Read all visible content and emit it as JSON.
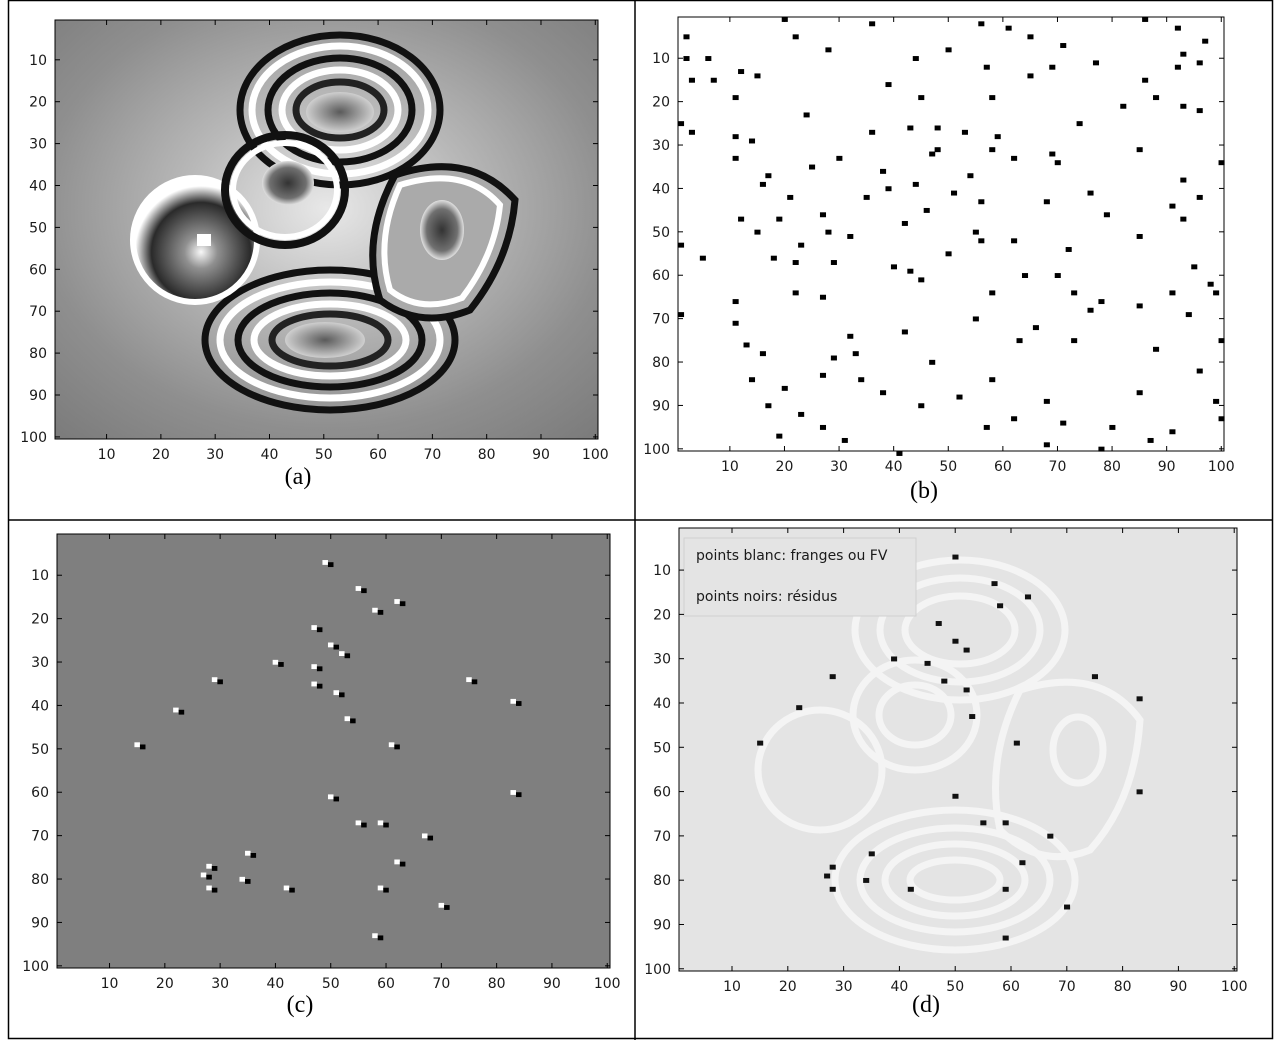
{
  "figure": {
    "panels": [
      {
        "id": "a",
        "caption": "(a)"
      },
      {
        "id": "b",
        "caption": "(b)"
      },
      {
        "id": "c",
        "caption": "(c)"
      },
      {
        "id": "d",
        "caption": "(d)"
      }
    ]
  },
  "chart_data": [
    {
      "panel": "a",
      "type": "heatmap",
      "caption": "(a)",
      "colormap": "gray",
      "content": "wrapped interferometric phase map with concentric fringes",
      "xlim": [
        1,
        100
      ],
      "ylim": [
        1,
        100
      ],
      "y_reversed": true,
      "xticks": [
        10,
        20,
        30,
        40,
        50,
        60,
        70,
        80,
        90,
        100
      ],
      "yticks": [
        10,
        20,
        30,
        40,
        50,
        60,
        70,
        80,
        90,
        100
      ]
    },
    {
      "panel": "b",
      "type": "scatter",
      "caption": "(b)",
      "marker": "black square",
      "background": "white",
      "xlim": [
        1,
        100
      ],
      "ylim": [
        1,
        100
      ],
      "y_reversed": true,
      "xticks": [
        10,
        20,
        30,
        40,
        50,
        60,
        70,
        80,
        90,
        100
      ],
      "yticks": [
        10,
        20,
        30,
        40,
        50,
        60,
        70,
        80,
        90,
        100
      ],
      "points": [
        [
          20,
          1
        ],
        [
          36,
          2
        ],
        [
          56,
          2
        ],
        [
          61,
          3
        ],
        [
          86,
          1
        ],
        [
          2,
          5
        ],
        [
          22,
          5
        ],
        [
          50,
          8
        ],
        [
          65,
          5
        ],
        [
          92,
          3
        ],
        [
          71,
          7
        ],
        [
          97,
          6
        ],
        [
          93,
          9
        ],
        [
          28,
          8
        ],
        [
          2,
          10
        ],
        [
          6,
          10
        ],
        [
          44,
          10
        ],
        [
          57,
          12
        ],
        [
          77,
          11
        ],
        [
          92,
          12
        ],
        [
          12,
          13
        ],
        [
          15,
          14
        ],
        [
          65,
          14
        ],
        [
          86,
          15
        ],
        [
          96,
          11
        ],
        [
          3,
          15
        ],
        [
          7,
          15
        ],
        [
          39,
          16
        ],
        [
          58,
          19
        ],
        [
          69,
          12
        ],
        [
          88,
          19
        ],
        [
          96,
          22
        ],
        [
          11,
          19
        ],
        [
          24,
          23
        ],
        [
          45,
          19
        ],
        [
          82,
          21
        ],
        [
          93,
          21
        ],
        [
          1,
          25
        ],
        [
          36,
          27
        ],
        [
          43,
          26
        ],
        [
          48,
          26
        ],
        [
          53,
          27
        ],
        [
          59,
          28
        ],
        [
          74,
          25
        ],
        [
          47,
          32
        ],
        [
          3,
          27
        ],
        [
          11,
          28
        ],
        [
          14,
          29
        ],
        [
          48,
          31
        ],
        [
          30,
          33
        ],
        [
          58,
          31
        ],
        [
          69,
          32
        ],
        [
          85,
          31
        ],
        [
          11,
          33
        ],
        [
          25,
          35
        ],
        [
          70,
          34
        ],
        [
          100,
          34
        ],
        [
          17,
          37
        ],
        [
          38,
          36
        ],
        [
          54,
          37
        ],
        [
          62,
          33
        ],
        [
          39,
          40
        ],
        [
          44,
          39
        ],
        [
          93,
          38
        ],
        [
          76,
          41
        ],
        [
          16,
          39
        ],
        [
          21,
          42
        ],
        [
          35,
          42
        ],
        [
          51,
          41
        ],
        [
          56,
          43
        ],
        [
          68,
          43
        ],
        [
          91,
          44
        ],
        [
          96,
          42
        ],
        [
          27,
          46
        ],
        [
          46,
          45
        ],
        [
          79,
          46
        ],
        [
          12,
          47
        ],
        [
          19,
          47
        ],
        [
          28,
          50
        ],
        [
          32,
          51
        ],
        [
          42,
          48
        ],
        [
          55,
          50
        ],
        [
          62,
          52
        ],
        [
          85,
          51
        ],
        [
          93,
          47
        ],
        [
          15,
          50
        ],
        [
          23,
          53
        ],
        [
          56,
          52
        ],
        [
          72,
          54
        ],
        [
          1,
          53
        ],
        [
          5,
          56
        ],
        [
          18,
          56
        ],
        [
          29,
          57
        ],
        [
          40,
          58
        ],
        [
          50,
          55
        ],
        [
          64,
          60
        ],
        [
          70,
          60
        ],
        [
          95,
          58
        ],
        [
          22,
          57
        ],
        [
          43,
          59
        ],
        [
          58,
          64
        ],
        [
          73,
          64
        ],
        [
          85,
          67
        ],
        [
          98,
          62
        ],
        [
          11,
          66
        ],
        [
          22,
          64
        ],
        [
          27,
          65
        ],
        [
          45,
          61
        ],
        [
          78,
          66
        ],
        [
          91,
          64
        ],
        [
          99,
          64
        ],
        [
          1,
          69
        ],
        [
          11,
          71
        ],
        [
          32,
          74
        ],
        [
          42,
          73
        ],
        [
          55,
          70
        ],
        [
          66,
          72
        ],
        [
          76,
          68
        ],
        [
          94,
          69
        ],
        [
          13,
          76
        ],
        [
          16,
          78
        ],
        [
          29,
          79
        ],
        [
          33,
          78
        ],
        [
          47,
          80
        ],
        [
          63,
          75
        ],
        [
          73,
          75
        ],
        [
          88,
          77
        ],
        [
          100,
          75
        ],
        [
          14,
          84
        ],
        [
          20,
          86
        ],
        [
          27,
          83
        ],
        [
          34,
          84
        ],
        [
          38,
          87
        ],
        [
          58,
          84
        ],
        [
          68,
          89
        ],
        [
          85,
          87
        ],
        [
          96,
          82
        ],
        [
          17,
          90
        ],
        [
          23,
          92
        ],
        [
          45,
          90
        ],
        [
          52,
          88
        ],
        [
          62,
          93
        ],
        [
          71,
          94
        ],
        [
          80,
          95
        ],
        [
          87,
          98
        ],
        [
          99,
          89
        ],
        [
          19,
          97
        ],
        [
          27,
          95
        ],
        [
          31,
          98
        ],
        [
          41,
          101
        ],
        [
          57,
          95
        ],
        [
          68,
          99
        ],
        [
          78,
          100
        ],
        [
          91,
          96
        ],
        [
          100,
          93
        ]
      ]
    },
    {
      "panel": "c",
      "type": "scatter",
      "caption": "(c)",
      "marker": "white/black pixel pairs",
      "background": "gray",
      "xlim": [
        1,
        100
      ],
      "ylim": [
        1,
        100
      ],
      "y_reversed": true,
      "xticks": [
        10,
        20,
        30,
        40,
        50,
        60,
        70,
        80,
        90,
        100
      ],
      "yticks": [
        10,
        20,
        30,
        40,
        50,
        60,
        70,
        80,
        90,
        100
      ],
      "points": [
        [
          49,
          7
        ],
        [
          55,
          13
        ],
        [
          62,
          16
        ],
        [
          58,
          18
        ],
        [
          47,
          22
        ],
        [
          50,
          26
        ],
        [
          52,
          28
        ],
        [
          47,
          31
        ],
        [
          40,
          30
        ],
        [
          29,
          34
        ],
        [
          47,
          35
        ],
        [
          51,
          37
        ],
        [
          53,
          43
        ],
        [
          75,
          34
        ],
        [
          83,
          39
        ],
        [
          22,
          41
        ],
        [
          15,
          49
        ],
        [
          61,
          49
        ],
        [
          83,
          60
        ],
        [
          50,
          61
        ],
        [
          55,
          67
        ],
        [
          59,
          67
        ],
        [
          67,
          70
        ],
        [
          62,
          76
        ],
        [
          35,
          74
        ],
        [
          28,
          77
        ],
        [
          27,
          79
        ],
        [
          34,
          80
        ],
        [
          28,
          82
        ],
        [
          42,
          82
        ],
        [
          59,
          82
        ],
        [
          70,
          86
        ],
        [
          58,
          93
        ]
      ]
    },
    {
      "panel": "d",
      "type": "heatmap",
      "caption": "(d)",
      "content": "fringe contour map (white points) with residues (black points)",
      "xlim": [
        1,
        100
      ],
      "ylim": [
        1,
        100
      ],
      "y_reversed": true,
      "xticks": [
        10,
        20,
        30,
        40,
        50,
        60,
        70,
        80,
        90,
        100
      ],
      "yticks": [
        10,
        20,
        30,
        40,
        50,
        60,
        70,
        80,
        90,
        100
      ],
      "legend": {
        "position": "top-left",
        "entries": [
          "points blanc: franges ou FV",
          "points noirs: résidus"
        ]
      },
      "residues": [
        [
          50,
          7
        ],
        [
          57,
          13
        ],
        [
          63,
          16
        ],
        [
          58,
          18
        ],
        [
          47,
          22
        ],
        [
          50,
          26
        ],
        [
          52,
          28
        ],
        [
          45,
          31
        ],
        [
          39,
          30
        ],
        [
          28,
          34
        ],
        [
          48,
          35
        ],
        [
          52,
          37
        ],
        [
          53,
          43
        ],
        [
          75,
          34
        ],
        [
          83,
          39
        ],
        [
          22,
          41
        ],
        [
          15,
          49
        ],
        [
          61,
          49
        ],
        [
          83,
          60
        ],
        [
          50,
          61
        ],
        [
          55,
          67
        ],
        [
          59,
          67
        ],
        [
          67,
          70
        ],
        [
          62,
          76
        ],
        [
          35,
          74
        ],
        [
          28,
          77
        ],
        [
          27,
          79
        ],
        [
          34,
          80
        ],
        [
          28,
          82
        ],
        [
          42,
          82
        ],
        [
          59,
          82
        ],
        [
          70,
          86
        ],
        [
          59,
          93
        ]
      ]
    }
  ]
}
